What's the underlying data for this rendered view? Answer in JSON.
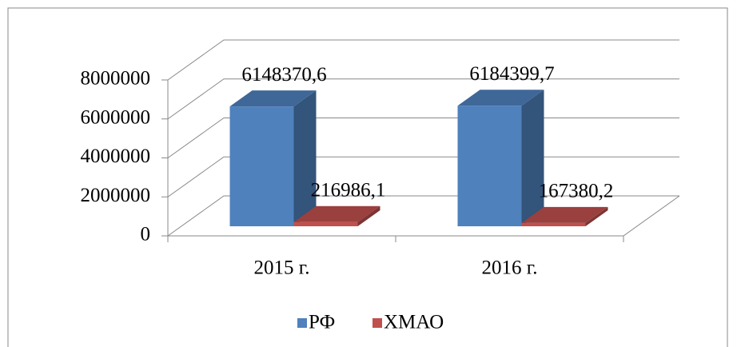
{
  "chart_data": {
    "type": "bar3d",
    "categories": [
      "2015 г.",
      "2016 г."
    ],
    "series": [
      {
        "name": "РФ",
        "color": "#4f81bd",
        "values": [
          6148370.6,
          6184399.7
        ],
        "value_labels": [
          "6148370,6",
          "6184399,7"
        ]
      },
      {
        "name": "ХМАО",
        "color": "#c0504d",
        "values": [
          216986.1,
          167380.2
        ],
        "value_labels": [
          "216986,1",
          "167380,2"
        ]
      }
    ],
    "ylim": [
      0,
      8000000
    ],
    "yticks": [
      0,
      2000000,
      4000000,
      6000000,
      8000000
    ],
    "grid": true,
    "legend": "bottom"
  }
}
